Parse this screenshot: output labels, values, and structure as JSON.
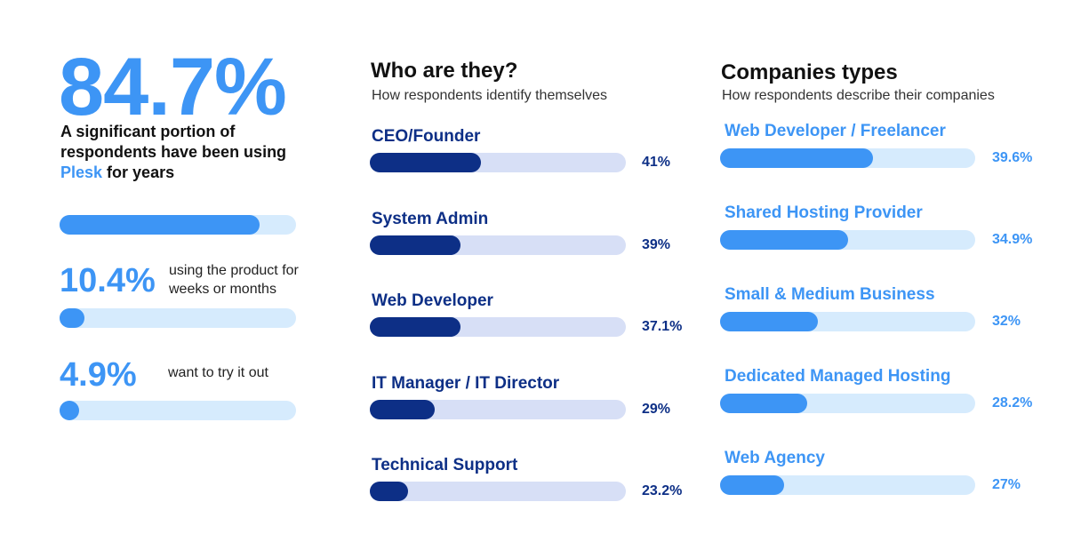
{
  "headline": {
    "value": "84.7%",
    "caption_before": "A significant portion of respondents have been using ",
    "caption_brand": "Plesk",
    "caption_after": " for years"
  },
  "stats": [
    {
      "value": "10.4%",
      "label": "using the product for weeks or months"
    },
    {
      "value": "4.9%",
      "label": "want to try it out"
    }
  ],
  "colors": {
    "accent_blue": "#3d95f5",
    "navy": "#0d2f86",
    "light_blue_track": "#d6ebfd",
    "lavender_track": "#d7dff6"
  },
  "chart_data": [
    {
      "type": "bar",
      "orientation": "horizontal",
      "description_keys": "usage duration bars",
      "categories": [
        "84.7%",
        "10.4%",
        "4.9%"
      ],
      "values": [
        84.7,
        10.4,
        4.9
      ],
      "ylim": [
        0,
        100
      ]
    },
    {
      "type": "bar",
      "orientation": "horizontal",
      "title": "Who are they?",
      "subtitle": "How respondents identify themselves",
      "categories": [
        "CEO/Founder",
        "System Admin",
        "Web Developer",
        "IT Manager / IT Director",
        "Technical Support"
      ],
      "values": [
        41,
        39,
        37.1,
        29,
        23.2
      ],
      "value_labels": [
        "41%",
        "39%",
        "37.1%",
        "29%",
        "23.2%"
      ],
      "fill_fractions": [
        0.435,
        0.355,
        0.355,
        0.255,
        0.15
      ]
    },
    {
      "type": "bar",
      "orientation": "horizontal",
      "title": "Companies types",
      "subtitle": "How respondents describe their companies",
      "categories": [
        "Web Developer / Freelancer",
        "Shared Hosting Provider",
        "Small & Medium Business",
        "Dedicated Managed Hosting",
        "Web Agency"
      ],
      "values": [
        39.6,
        34.9,
        32,
        28.2,
        27
      ],
      "value_labels": [
        "39.6%",
        "34.9%",
        "32%",
        "28.2%",
        "27%"
      ],
      "fill_fractions": [
        0.6,
        0.5,
        0.385,
        0.34,
        0.25
      ]
    }
  ]
}
